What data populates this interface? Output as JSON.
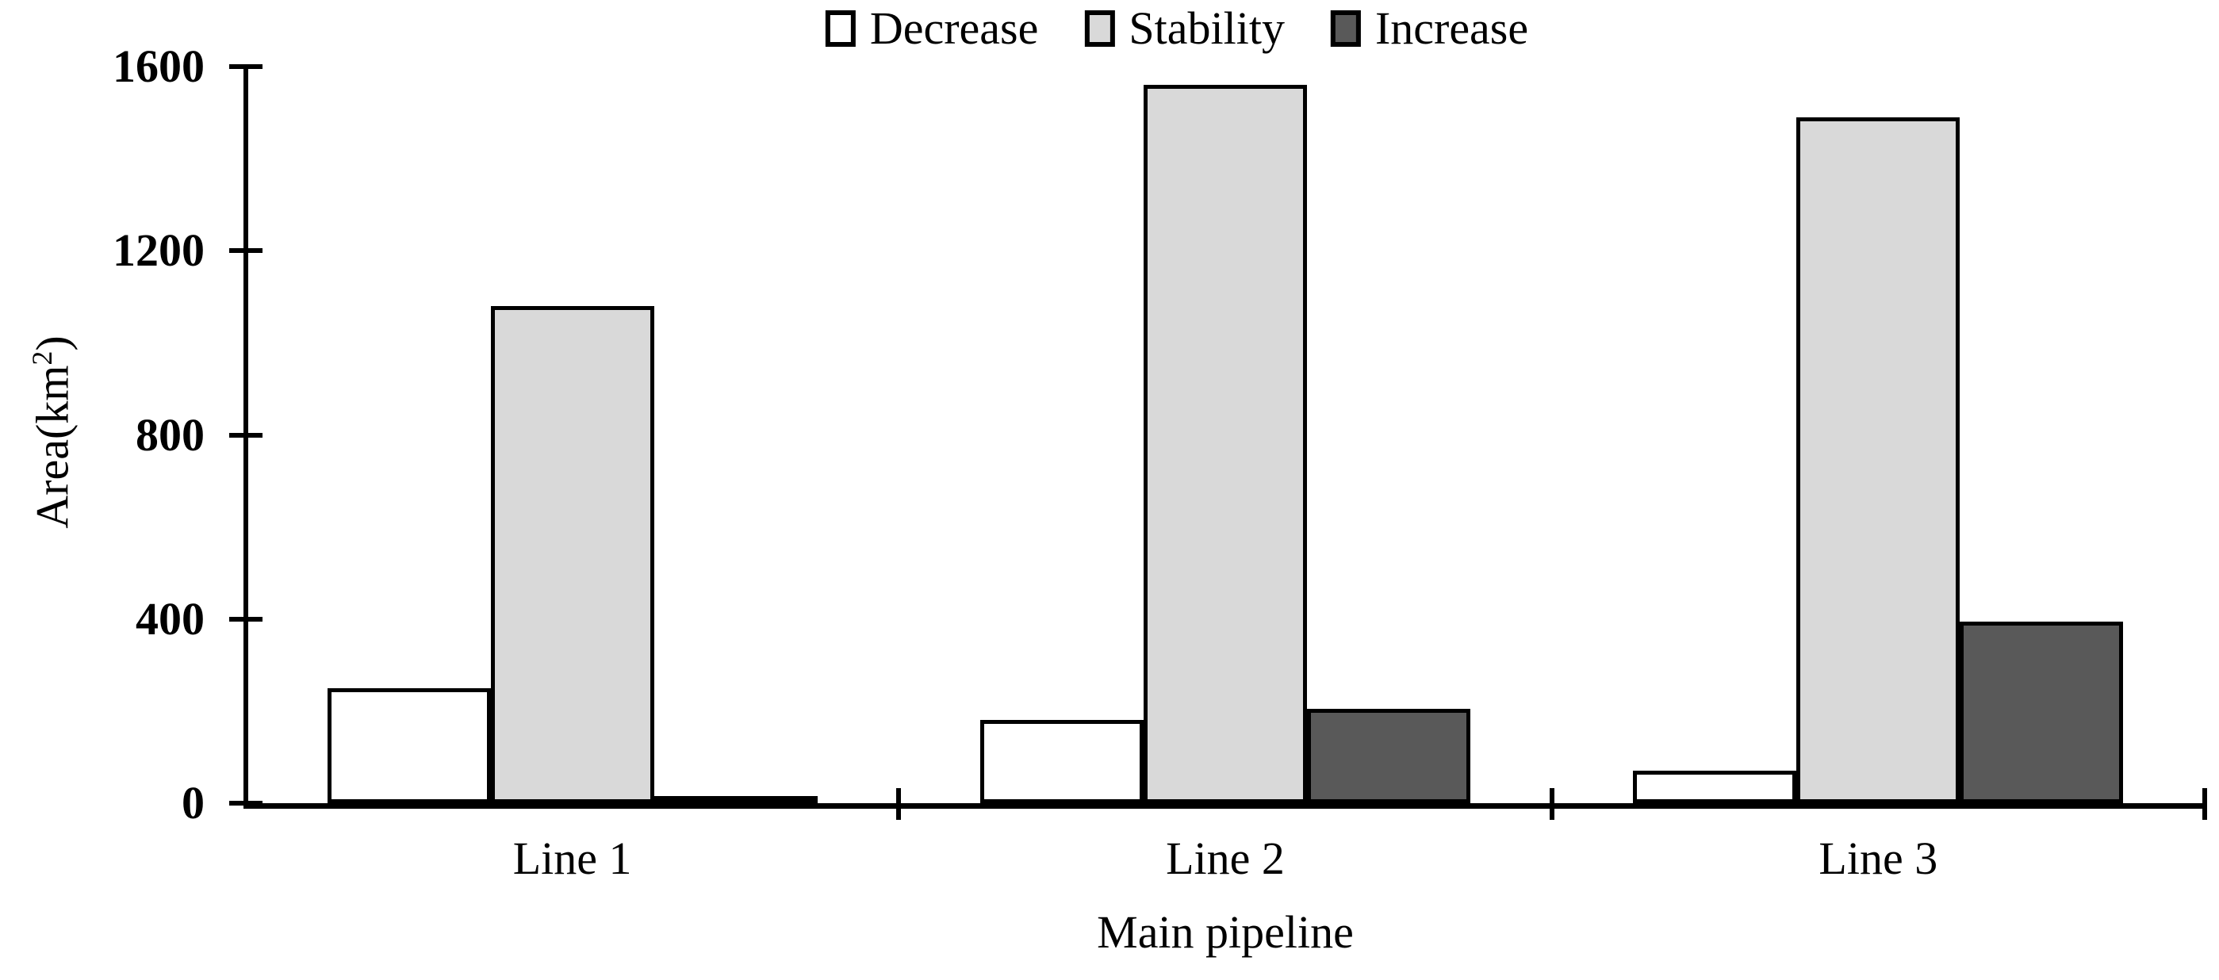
{
  "chart_data": {
    "type": "bar",
    "title": "",
    "categories": [
      "Line 1",
      "Line 2",
      "Line 3"
    ],
    "series": [
      {
        "name": "Decrease",
        "fill": "#ffffff",
        "values": [
          250,
          180,
          70
        ]
      },
      {
        "name": "Stability",
        "fill": "#d9d9d9",
        "values": [
          1080,
          1560,
          1490
        ]
      },
      {
        "name": "Increase",
        "fill": "#595959",
        "values": [
          15,
          205,
          395
        ]
      }
    ],
    "xlabel": "Main pipeline",
    "ylabel": "Area(km²)",
    "ylabel_parts": {
      "prefix": "Area(km",
      "sup": "2",
      "suffix": ")"
    },
    "ylim": [
      0,
      1600
    ],
    "yticks": [
      0,
      400,
      800,
      1200,
      1600
    ],
    "legend_position": "top",
    "grid": false,
    "colors": {
      "background": "#ffffff",
      "axis": "#000000",
      "bar_border": "#000000",
      "text": "#000000"
    }
  }
}
